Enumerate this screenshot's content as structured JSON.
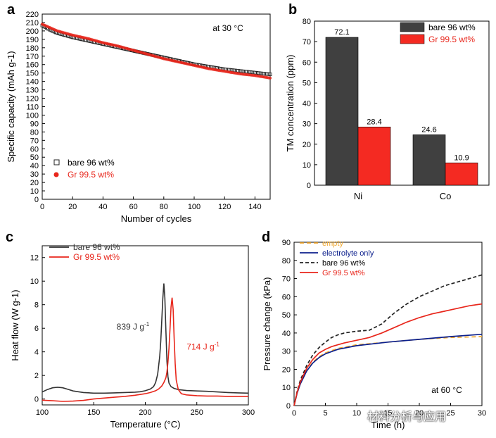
{
  "watermark": "材料分析与应用",
  "chart_data": [
    {
      "panel": "a",
      "type": "scatter",
      "title": "",
      "annotation": "at 30 °C",
      "xlabel": "Number of cycles",
      "ylabel": "Specific capacity (mAh g-1)",
      "xlim": [
        0,
        150
      ],
      "ylim": [
        0,
        220
      ],
      "xticks": [
        0,
        20,
        40,
        60,
        80,
        100,
        120,
        140
      ],
      "yticks": [
        0,
        10,
        20,
        30,
        40,
        50,
        60,
        70,
        80,
        90,
        100,
        110,
        120,
        130,
        140,
        150,
        160,
        170,
        180,
        190,
        200,
        210,
        220
      ],
      "legend_position": "bottom-left",
      "series": [
        {
          "name": "bare 96 wt%",
          "color": "#222222",
          "marker": "open-square",
          "x": [
            0,
            5,
            10,
            20,
            30,
            40,
            50,
            60,
            70,
            80,
            90,
            100,
            110,
            120,
            130,
            140,
            150
          ],
          "y": [
            206,
            201,
            197,
            192,
            188,
            184,
            180,
            176,
            172,
            168,
            164,
            160,
            157,
            154,
            152,
            150,
            148
          ]
        },
        {
          "name": "Gr 99.5 wt%",
          "color": "#e8261b",
          "marker": "filled-circle",
          "x": [
            0,
            5,
            10,
            20,
            30,
            40,
            50,
            60,
            70,
            80,
            90,
            100,
            110,
            120,
            130,
            140,
            150
          ],
          "y": [
            208,
            204,
            200,
            195,
            191,
            186,
            182,
            177,
            172,
            167,
            163,
            159,
            155,
            152,
            149,
            147,
            144
          ]
        }
      ]
    },
    {
      "panel": "b",
      "type": "bar",
      "title": "",
      "xlabel": "",
      "ylabel": "TM concentration (ppm)",
      "categories": [
        "Ni",
        "Co"
      ],
      "ylim": [
        0,
        80
      ],
      "yticks": [
        0,
        10,
        20,
        30,
        40,
        50,
        60,
        70,
        80
      ],
      "legend_position": "top-right",
      "series": [
        {
          "name": "bare 96 wt%",
          "color": "#404040",
          "values": [
            72.1,
            24.6
          ],
          "labels": [
            "72.1",
            "24.6"
          ]
        },
        {
          "name": "Gr 99.5 wt%",
          "color": "#f42a22",
          "values": [
            28.4,
            10.9
          ],
          "labels": [
            "28.4",
            "10.9"
          ]
        }
      ]
    },
    {
      "panel": "c",
      "type": "line",
      "title": "",
      "xlabel": "Temperature (°C)",
      "ylabel": "Heat flow (W g-1)",
      "xlim": [
        100,
        300
      ],
      "ylim": [
        -0.5,
        13
      ],
      "xticks": [
        100,
        150,
        200,
        250,
        300
      ],
      "yticks": [
        0,
        2,
        4,
        6,
        8,
        10,
        12
      ],
      "legend_position": "top-left",
      "annotations": [
        {
          "text": "839 J g",
          "sup": "-1",
          "color": "#333333",
          "x": 188,
          "y": 5.9
        },
        {
          "text": "714 J g",
          "sup": "-1",
          "color": "#e8261b",
          "x": 256,
          "y": 4.2
        }
      ],
      "series": [
        {
          "name": "bare 96 wt%",
          "color": "#333333",
          "x": [
            100,
            105,
            110,
            115,
            120,
            125,
            130,
            140,
            150,
            160,
            170,
            180,
            190,
            195,
            200,
            205,
            208,
            210,
            212,
            214,
            215,
            216,
            217,
            218,
            219,
            220,
            221,
            222,
            223,
            225,
            228,
            232,
            240,
            250,
            260,
            270,
            280,
            290,
            300
          ],
          "y": [
            0.6,
            0.8,
            0.95,
            1.0,
            0.95,
            0.82,
            0.68,
            0.55,
            0.5,
            0.5,
            0.52,
            0.55,
            0.58,
            0.62,
            0.7,
            0.85,
            1.05,
            1.4,
            2.1,
            3.6,
            4.9,
            6.6,
            8.5,
            9.8,
            8.6,
            5.8,
            3.2,
            1.9,
            1.35,
            1.05,
            0.9,
            0.8,
            0.72,
            0.68,
            0.65,
            0.6,
            0.55,
            0.52,
            0.5
          ]
        },
        {
          "name": "Gr 99.5 wt%",
          "color": "#e8261b",
          "x": [
            100,
            110,
            120,
            130,
            140,
            150,
            160,
            170,
            180,
            190,
            200,
            205,
            210,
            213,
            216,
            218,
            220,
            221,
            222,
            223,
            224,
            225,
            226,
            227,
            228,
            229,
            230,
            232,
            235,
            240,
            250,
            260,
            270,
            280,
            290,
            300
          ],
          "y": [
            -0.1,
            -0.15,
            -0.2,
            -0.18,
            -0.12,
            0.0,
            0.08,
            0.15,
            0.22,
            0.32,
            0.45,
            0.55,
            0.7,
            0.85,
            1.1,
            1.4,
            1.8,
            2.3,
            3.1,
            4.3,
            6.0,
            7.8,
            8.6,
            7.6,
            5.2,
            3.0,
            1.6,
            0.8,
            0.45,
            0.35,
            0.28,
            0.25,
            0.25,
            0.22,
            0.22,
            0.22
          ]
        }
      ]
    },
    {
      "panel": "d",
      "type": "line",
      "title": "",
      "annotation": "at 60 °C",
      "xlabel": "Time (h)",
      "ylabel": "Pressure change (kPa)",
      "xlim": [
        0,
        30
      ],
      "ylim": [
        0,
        90
      ],
      "xticks": [
        0,
        5,
        10,
        15,
        20,
        25,
        30
      ],
      "xtick_labels": [
        "0",
        "5",
        "10",
        "15",
        "20",
        "25",
        "30"
      ],
      "yticks": [
        0,
        10,
        20,
        30,
        40,
        50,
        60,
        70,
        80,
        90
      ],
      "legend_position": "top-left",
      "series": [
        {
          "name": "empty",
          "color": "#f0a830",
          "dash": "6,4",
          "x": [
            0,
            0.5,
            1,
            2,
            3,
            4,
            5,
            7,
            10,
            15,
            20,
            25,
            30
          ],
          "y": [
            0,
            7,
            12,
            19,
            24,
            27,
            29,
            31.5,
            33.5,
            35,
            36.5,
            37.5,
            38
          ]
        },
        {
          "name": "electrolyte only",
          "color": "#0b1f8c",
          "dash": "",
          "x": [
            0,
            0.5,
            1,
            2,
            3,
            4,
            5,
            7,
            10,
            15,
            20,
            25,
            30
          ],
          "y": [
            0,
            7,
            12,
            19,
            23.5,
            26.5,
            28.5,
            31,
            33,
            35,
            36.5,
            38,
            39.3
          ]
        },
        {
          "name": "bare 96 wt%",
          "color": "#222222",
          "dash": "5,3",
          "x": [
            0,
            0.5,
            1,
            2,
            3,
            4,
            5,
            6,
            7,
            8,
            10,
            12,
            14,
            16,
            18,
            20,
            22,
            24,
            26,
            28,
            30
          ],
          "y": [
            0,
            8,
            14,
            22,
            28,
            32,
            35,
            37.5,
            39,
            40,
            41,
            41.5,
            45,
            51,
            56,
            60,
            63,
            66,
            68,
            70,
            72
          ]
        },
        {
          "name": "Gr 99.5 wt%",
          "color": "#e8261b",
          "dash": "",
          "x": [
            0,
            0.5,
            1,
            2,
            3,
            4,
            5,
            6,
            7,
            8,
            10,
            12,
            14,
            16,
            18,
            20,
            22,
            24,
            26,
            28,
            30
          ],
          "y": [
            0,
            7.5,
            13,
            20.5,
            25.5,
            29,
            31,
            32.5,
            33.5,
            34.5,
            36,
            37.5,
            40,
            43,
            46,
            48.5,
            50.5,
            52,
            53.5,
            55,
            56
          ]
        }
      ]
    }
  ]
}
